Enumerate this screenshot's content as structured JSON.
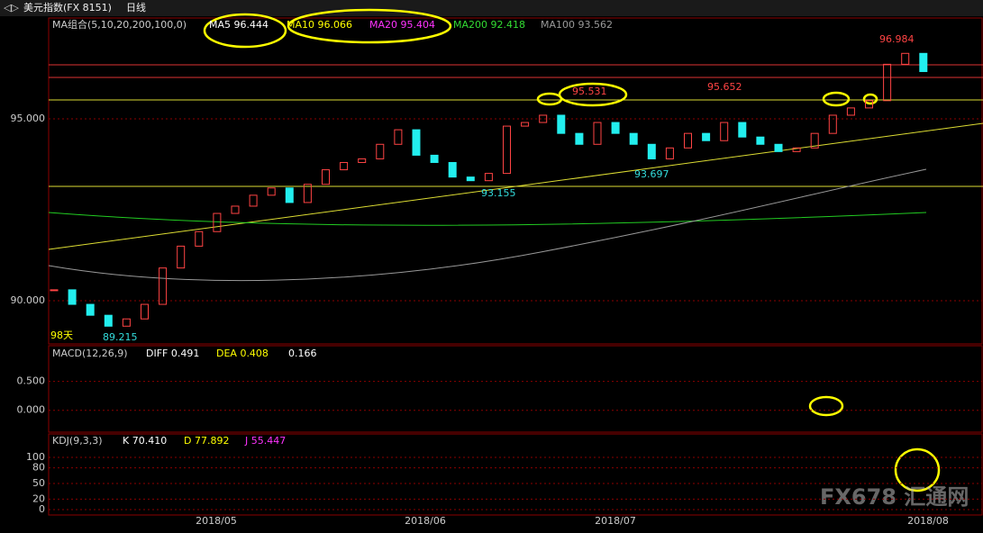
{
  "header": {
    "symbol": "美元指数(FX 8151)",
    "period": "日线"
  },
  "chart_data": {
    "type": "candlestick",
    "ma_legend": [
      "MA组合(5,10,20,200,100,0)",
      "MA5 96.444",
      "MA10 96.066",
      "MA20 95.404",
      "MA200 92.418",
      "MA100 93.562"
    ],
    "days_label": "98天",
    "closes": [
      90.3,
      89.9,
      89.6,
      89.3,
      89.5,
      89.9,
      90.9,
      91.5,
      91.9,
      92.4,
      92.6,
      92.9,
      93.1,
      92.7,
      93.2,
      93.6,
      93.8,
      93.9,
      94.3,
      94.7,
      94.0,
      93.8,
      93.4,
      93.3,
      93.5,
      94.8,
      94.9,
      95.1,
      94.6,
      94.3,
      94.9,
      94.6,
      94.3,
      93.9,
      94.2,
      94.6,
      94.4,
      94.9,
      94.5,
      94.3,
      94.1,
      94.2,
      94.6,
      95.1,
      95.3,
      95.5,
      96.5,
      96.8,
      96.3
    ],
    "ylim": [
      89,
      97.5
    ],
    "yticks": [
      {
        "value": 90,
        "label": "90.000"
      },
      {
        "value": 95,
        "label": "95.000"
      }
    ],
    "annotations": [
      "96.984",
      "95.652",
      "95.531",
      "93.697",
      "93.155",
      "89.215"
    ],
    "x_labels": [
      "2018/05",
      "2018/06",
      "2018/07",
      "2018/08"
    ]
  },
  "macd": {
    "legend": [
      "MACD(12,26,9)",
      "DIFF 0.491",
      "DEA 0.408",
      "0.166"
    ],
    "ylim": [
      -0.3,
      1.1
    ],
    "yticks": [
      {
        "value": 0.5,
        "label": "0.500"
      },
      {
        "value": 0,
        "label": "0.000"
      }
    ]
  },
  "kdj": {
    "legend": [
      "KDJ(9,3,3)",
      "K 70.410",
      "D 77.892",
      "J 55.447"
    ],
    "ylim": [
      -7,
      145
    ],
    "yticks": [
      100,
      80,
      50,
      20,
      0
    ]
  },
  "watermark": "FX678 汇通网"
}
